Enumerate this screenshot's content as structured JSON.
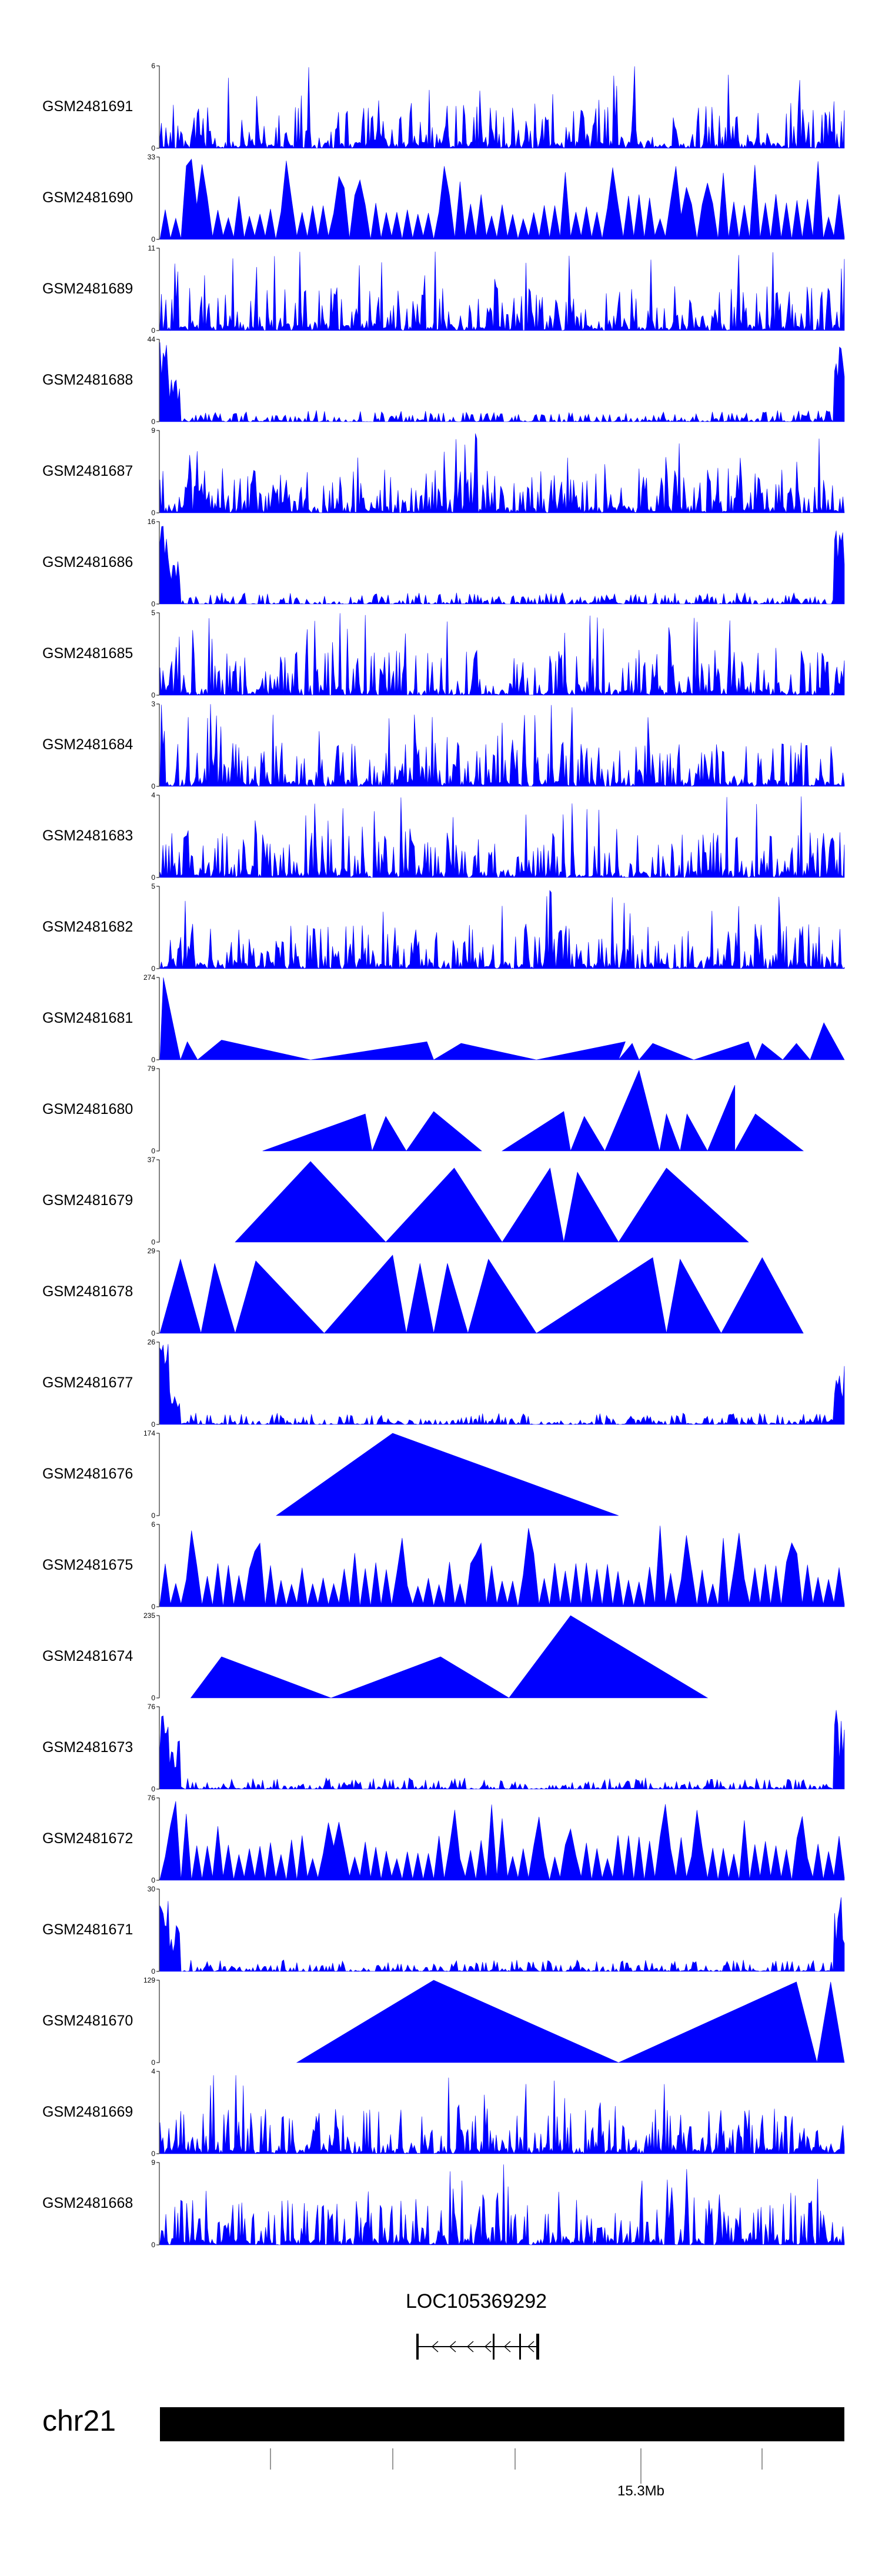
{
  "chart_data": {
    "type": "area",
    "title": "",
    "tracks": [
      {
        "name": "GSM2481691",
        "ymax": "6",
        "ymin": "0",
        "pattern": "dense"
      },
      {
        "name": "GSM2481690",
        "ymax": "33",
        "ymin": "0",
        "pattern": "spiky"
      },
      {
        "name": "GSM2481689",
        "ymax": "11",
        "ymin": "0",
        "pattern": "dense"
      },
      {
        "name": "GSM2481688",
        "ymax": "44",
        "ymin": "0",
        "pattern": "leftpeak"
      },
      {
        "name": "GSM2481687",
        "ymax": "9",
        "ymin": "0",
        "pattern": "dense"
      },
      {
        "name": "GSM2481686",
        "ymax": "16",
        "ymin": "0",
        "pattern": "leftpeak"
      },
      {
        "name": "GSM2481685",
        "ymax": "5",
        "ymin": "0",
        "pattern": "dense"
      },
      {
        "name": "GSM2481684",
        "ymax": "3",
        "ymin": "0",
        "pattern": "dense"
      },
      {
        "name": "GSM2481683",
        "ymax": "4",
        "ymin": "0",
        "pattern": "dense"
      },
      {
        "name": "GSM2481682",
        "ymax": "5",
        "ymin": "0",
        "pattern": "dense"
      },
      {
        "name": "GSM2481681",
        "ymax": "274",
        "ymin": "0",
        "pattern": "sparse1"
      },
      {
        "name": "GSM2481680",
        "ymax": "79",
        "ymin": "0",
        "pattern": "sparse2"
      },
      {
        "name": "GSM2481679",
        "ymax": "37",
        "ymin": "0",
        "pattern": "sparse3"
      },
      {
        "name": "GSM2481678",
        "ymax": "29",
        "ymin": "0",
        "pattern": "sparse4"
      },
      {
        "name": "GSM2481677",
        "ymax": "26",
        "ymin": "0",
        "pattern": "leftpeak"
      },
      {
        "name": "GSM2481676",
        "ymax": "174",
        "ymin": "0",
        "pattern": "sparse5"
      },
      {
        "name": "GSM2481675",
        "ymax": "6",
        "ymin": "0",
        "pattern": "spiky"
      },
      {
        "name": "GSM2481674",
        "ymax": "235",
        "ymin": "0",
        "pattern": "sparse6"
      },
      {
        "name": "GSM2481673",
        "ymax": "76",
        "ymin": "0",
        "pattern": "leftpeak"
      },
      {
        "name": "GSM2481672",
        "ymax": "76",
        "ymin": "0",
        "pattern": "spiky"
      },
      {
        "name": "GSM2481671",
        "ymax": "30",
        "ymin": "0",
        "pattern": "leftpeak"
      },
      {
        "name": "GSM2481670",
        "ymax": "129",
        "ymin": "0",
        "pattern": "sparse7"
      },
      {
        "name": "GSM2481669",
        "ymax": "4",
        "ymin": "0",
        "pattern": "dense"
      },
      {
        "name": "GSM2481668",
        "ymax": "9",
        "ymin": "0",
        "pattern": "dense"
      }
    ],
    "gene": {
      "name": "LOC105369292",
      "strand": "-"
    },
    "chromosome": {
      "name": "chr21",
      "position_label": "15.3Mb"
    },
    "colors": {
      "signal": "#0000ff",
      "ideogram": "#000000",
      "axis": "#000000"
    }
  }
}
